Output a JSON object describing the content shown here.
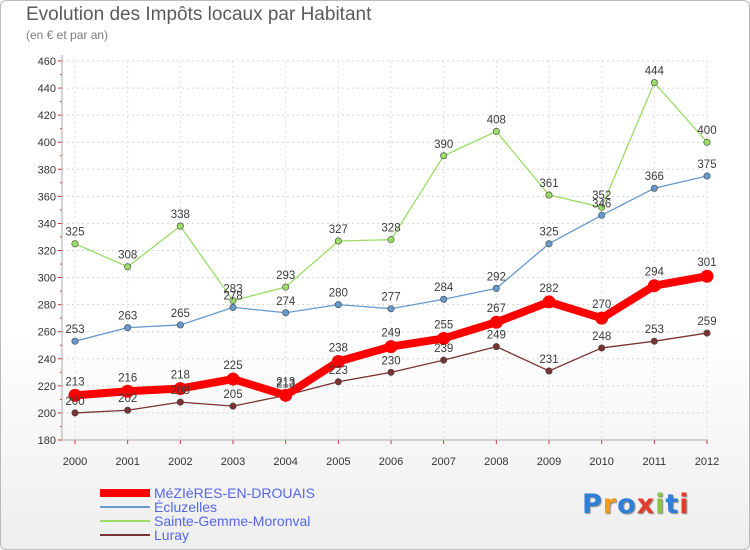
{
  "title": "Evolution des Impôts locaux par Habitant",
  "subtitle": "(en € et par an)",
  "logo": "Proxiti",
  "chart_data": {
    "type": "line",
    "ylim": [
      180,
      460
    ],
    "ytick_labels": [
      "180",
      "200",
      "220",
      "240",
      "260",
      "280",
      "300",
      "320",
      "340",
      "360",
      "380",
      "400",
      "420",
      "440",
      "460"
    ],
    "categories": [
      "2000",
      "2001",
      "2002",
      "2003",
      "2004",
      "2005",
      "2006",
      "2007",
      "2008",
      "2009",
      "2010",
      "2011",
      "2012"
    ],
    "grid": "horizontal",
    "legend_position": "bottom-left",
    "series": [
      {
        "name": "MéZIèRES-EN-DROUAIS",
        "color": "#ff0000",
        "values": [
          213,
          216,
          218,
          225,
          213,
          238,
          249,
          255,
          267,
          282,
          270,
          294,
          301
        ],
        "labels": [
          "213",
          "216",
          "218",
          "225",
          "213",
          "238",
          "249",
          "255",
          "267",
          "282",
          "270",
          "294",
          "301"
        ]
      },
      {
        "name": "Écluzelles",
        "color": "#6699cc",
        "values": [
          253,
          263,
          265,
          278,
          274,
          280,
          277,
          284,
          292,
          325,
          346,
          366,
          375
        ],
        "labels": [
          "253",
          "263",
          "265",
          "278",
          "274",
          "280",
          "277",
          "284",
          "292",
          "325",
          "346",
          "366",
          "375"
        ]
      },
      {
        "name": "Sainte-Gemme-Moronval",
        "color": "#99dd66",
        "values": [
          325,
          308,
          338,
          283,
          293,
          327,
          328,
          390,
          408,
          361,
          352,
          444,
          400
        ],
        "labels": [
          "325",
          "308",
          "338",
          "283",
          "293",
          "327",
          "328",
          "390",
          "408",
          "361",
          "352",
          "444",
          "400"
        ]
      },
      {
        "name": "Luray",
        "color": "#7a3333",
        "values": [
          200,
          202,
          208,
          205,
          213,
          223,
          230,
          239,
          249,
          231,
          248,
          253,
          259
        ],
        "labels": [
          "200",
          "202",
          "208",
          "205",
          "213",
          "223",
          "230",
          "239",
          "249",
          "231",
          "248",
          "253",
          "259"
        ]
      }
    ]
  }
}
